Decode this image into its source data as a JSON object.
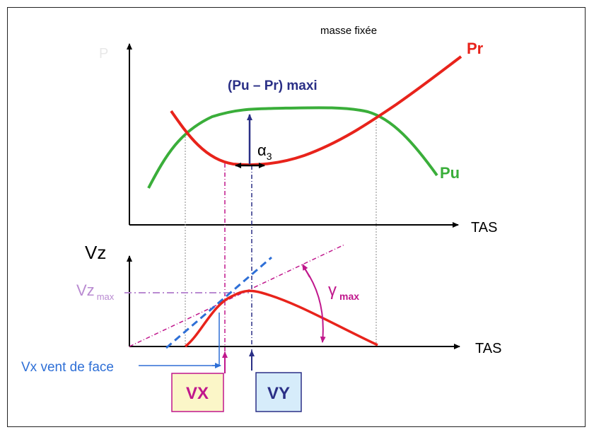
{
  "top_note": "masse fixée",
  "top_chart": {
    "y_label": "P",
    "x_label": "TAS",
    "curve_pr_label": "Pr",
    "curve_pu_label": "Pu",
    "annotation_max": "(Pu – Pr) maxi",
    "alpha_label": "α",
    "alpha_sub": "3"
  },
  "bottom_chart": {
    "y_label": "Vz",
    "x_label": "TAS",
    "vzmax_label": "Vz",
    "vzmax_sub": "max",
    "gamma_label": "γ",
    "gamma_sub": "max",
    "headwind_label": "Vx vent de face"
  },
  "boxes": {
    "vx": "VX",
    "vy": "VY"
  },
  "colors": {
    "pr": "#e8231b",
    "pu": "#3aae3a",
    "navy": "#2a2f86",
    "magenta": "#c0178c",
    "blue": "#2e6fd6",
    "lilac": "#b98ad1",
    "vx_box_fill": "#fbf6c8",
    "vy_box_fill": "#d6ecfa"
  }
}
